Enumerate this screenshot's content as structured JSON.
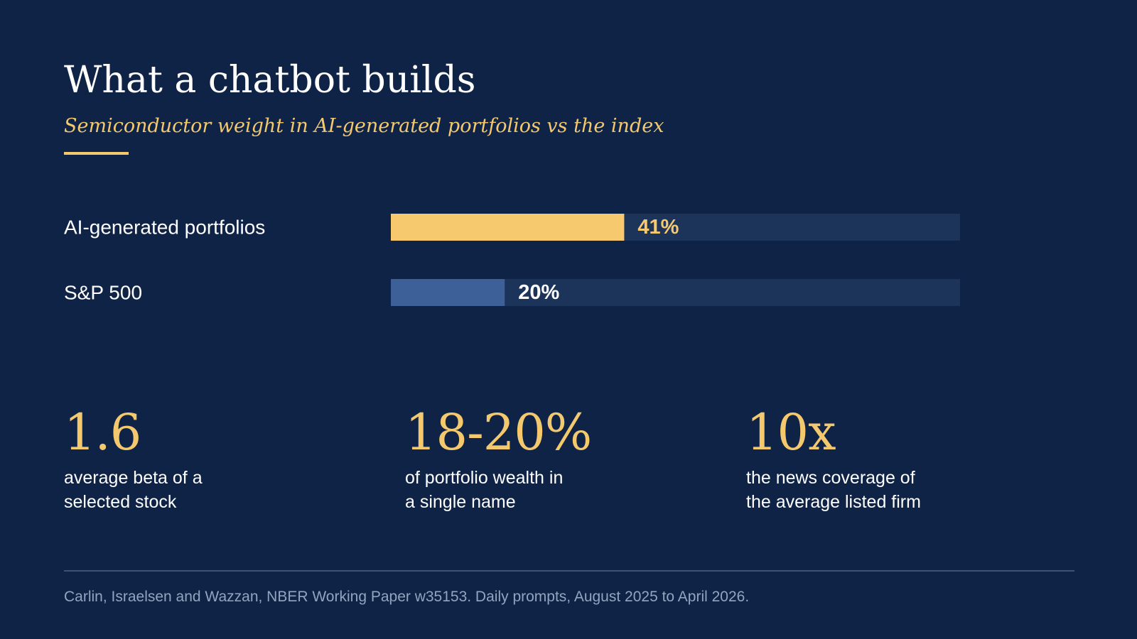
{
  "header": {
    "title": "What a chatbot builds",
    "subtitle": "Semiconductor weight in AI-generated portfolios vs the index"
  },
  "chart_data": {
    "type": "bar",
    "orientation": "horizontal",
    "categories": [
      "AI-generated portfolios",
      "S&P 500"
    ],
    "values": [
      41,
      20
    ],
    "value_labels": [
      "41%",
      "20%"
    ],
    "xlim": [
      0,
      100
    ],
    "colors": [
      "#f6c96f",
      "#3d6098"
    ],
    "track_color": "#1c335a",
    "value_label_colors": [
      "#f6c96f",
      "#ffffff"
    ],
    "grid": false,
    "legend": "none"
  },
  "stats": [
    {
      "value": "1.6",
      "desc": [
        "average beta of a",
        "selected stock"
      ]
    },
    {
      "value": "18-20%",
      "desc": [
        "of portfolio wealth in",
        "a single name"
      ]
    },
    {
      "value": "10x",
      "desc": [
        "the news coverage of",
        "the average listed firm"
      ]
    }
  ],
  "footer": {
    "source": "Carlin, Israelsen and Wazzan, NBER Working Paper w35153. Daily prompts, August 2025 to April 2026."
  },
  "colors": {
    "background": "#0f2347",
    "accent": "#f4c96e",
    "text": "#ffffff",
    "muted": "#93a4bf"
  }
}
